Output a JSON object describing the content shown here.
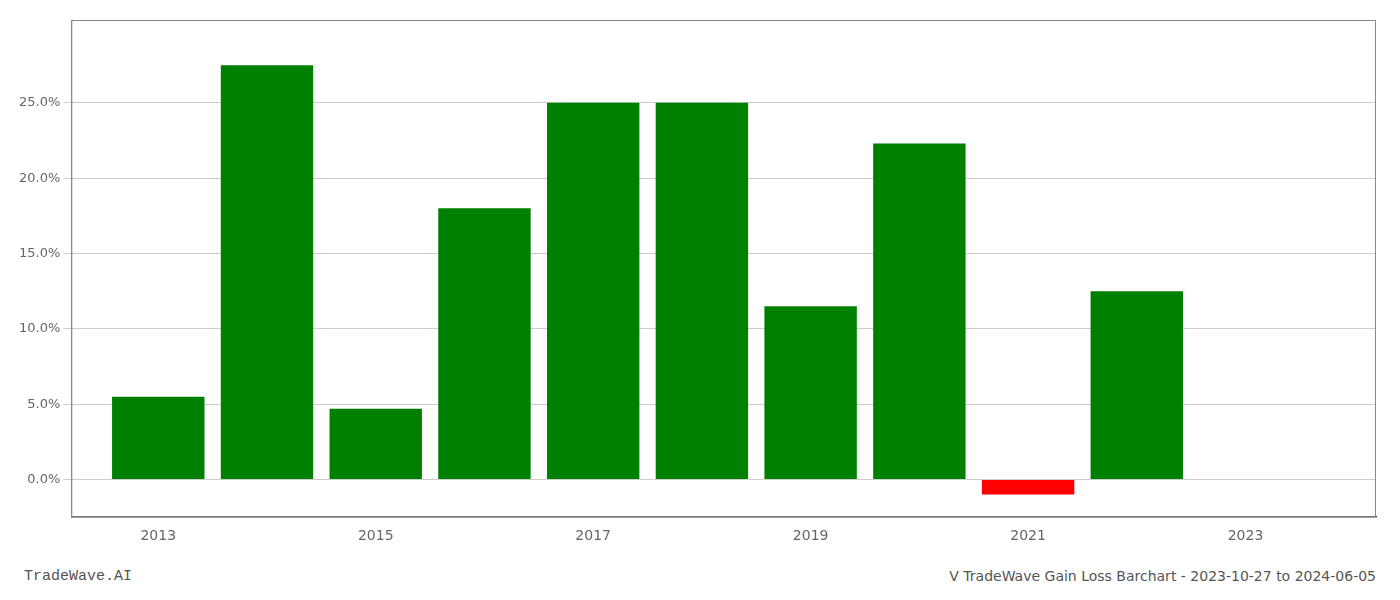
{
  "chart_data": {
    "type": "bar",
    "title": "V TradeWave Gain Loss Barchart - 2023-10-27 to 2024-06-05",
    "annotations": [
      "TradeWave.AI"
    ],
    "x": [
      2013,
      2014,
      2015,
      2016,
      2017,
      2018,
      2019,
      2020,
      2021,
      2022
    ],
    "values": [
      5.5,
      27.5,
      4.7,
      18.0,
      25.0,
      25.0,
      11.5,
      22.3,
      -1.0,
      12.5
    ],
    "colors": [
      "#008000",
      "#008000",
      "#008000",
      "#008000",
      "#008000",
      "#008000",
      "#008000",
      "#008000",
      "#ff0000",
      "#008000"
    ],
    "xlim": [
      2012.2,
      2024.2
    ],
    "xticks": [
      2013,
      2015,
      2017,
      2019,
      2021,
      2023
    ],
    "ylim": [
      -2.5,
      30.5
    ],
    "yticks": [
      {
        "value": 0.0,
        "label": "0.0%"
      },
      {
        "value": 5.0,
        "label": "5.0%"
      },
      {
        "value": 10.0,
        "label": "10.0%"
      },
      {
        "value": 15.0,
        "label": "15.0%"
      },
      {
        "value": 20.0,
        "label": "20.0%"
      },
      {
        "value": 25.0,
        "label": "25.0%"
      }
    ],
    "grid": true
  }
}
